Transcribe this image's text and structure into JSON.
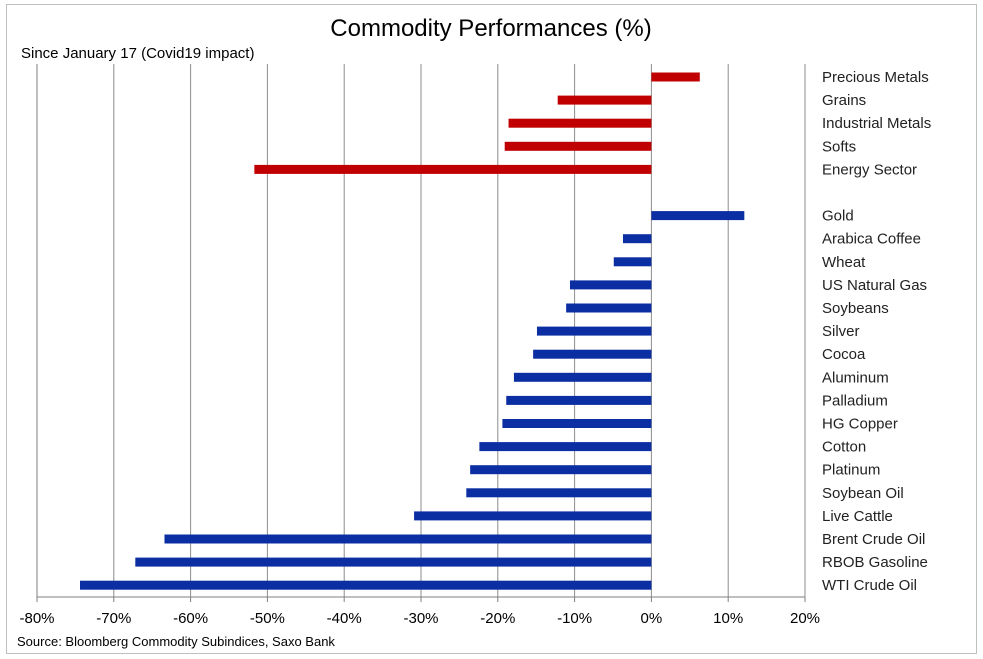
{
  "chart_data": {
    "type": "bar",
    "orientation": "horizontal",
    "title": "Commodity Performances (%)",
    "subtitle": "Since January 17 (Covid19 impact)",
    "source": "Source: Bloomberg Commodity Subindices, Saxo Bank",
    "xlim": [
      -80,
      20
    ],
    "xticks": [
      -80,
      -70,
      -60,
      -50,
      -40,
      -30,
      -20,
      -10,
      0,
      10,
      20
    ],
    "xtick_labels": [
      "-80%",
      "-70%",
      "-60%",
      "-50%",
      "-40%",
      "-30%",
      "-20%",
      "-10%",
      "0%",
      "10%",
      "20%"
    ],
    "grid": "vertical",
    "colors": {
      "sectors": "#c00000",
      "commodities": "#0c2ea3",
      "grid": "#8c8c8c",
      "axis": "#7f7f7f"
    },
    "groups": [
      {
        "name": "sectors",
        "color": "#c00000",
        "categories": [
          "Precious Metals",
          "Grains",
          "Industrial Metals",
          "Softs",
          "Energy Sector"
        ],
        "values": [
          6.3,
          -12.2,
          -18.6,
          -19.1,
          -51.7
        ]
      },
      {
        "name": "commodities",
        "color": "#0c2ea3",
        "categories": [
          "Gold",
          "Arabica Coffee",
          "Wheat",
          "US Natural Gas",
          "Soybeans",
          "Silver",
          "Cocoa",
          "Aluminum",
          "Palladium",
          "HG Copper",
          "Cotton",
          "Platinum",
          "Soybean Oil",
          "Live Cattle",
          "Brent Crude Oil",
          "RBOB Gasoline",
          "WTI Crude Oil"
        ],
        "values": [
          12.1,
          -3.7,
          -4.9,
          -10.6,
          -11.1,
          -14.9,
          -15.4,
          -17.9,
          -18.9,
          -19.4,
          -22.4,
          -23.6,
          -24.1,
          -30.9,
          -63.4,
          -67.2,
          -74.4
        ]
      }
    ]
  }
}
